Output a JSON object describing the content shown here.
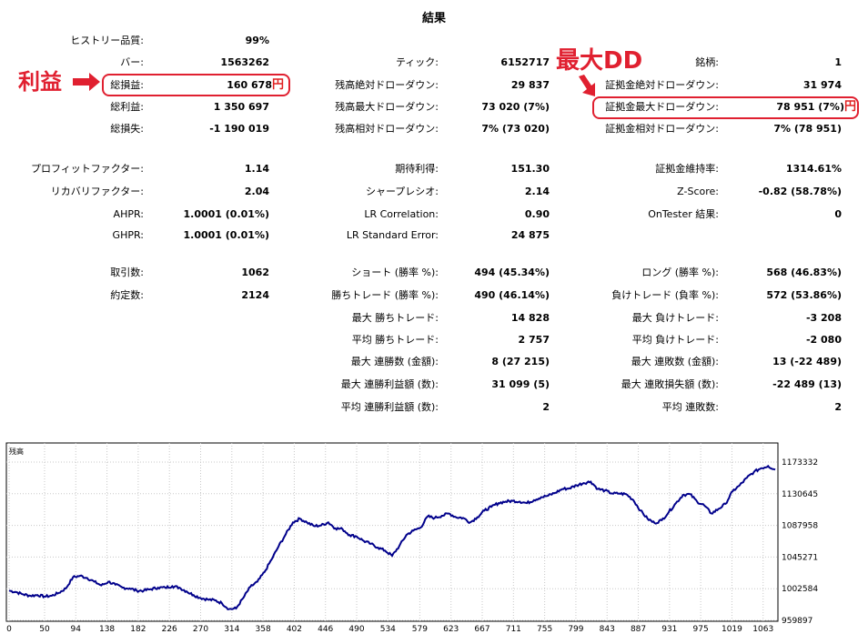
{
  "report": {
    "title": "結果",
    "col1": [
      {
        "label": "ヒストリー品質:",
        "value": "99%"
      },
      {
        "label": "バー:",
        "value": "1563262"
      },
      {
        "label": "総損益:",
        "value": "160 678",
        "suffix": "円"
      },
      {
        "label": "総利益:",
        "value": "1 350 697"
      },
      {
        "label": "総損失:",
        "value": "-1 190 019"
      },
      {
        "label": "プロフィットファクター:",
        "value": "1.14"
      },
      {
        "label": "リカバリファクター:",
        "value": "2.04"
      },
      {
        "label": "AHPR:",
        "value": "1.0001 (0.01%)"
      },
      {
        "label": "GHPR:",
        "value": "1.0001 (0.01%)"
      },
      {
        "label": "取引数:",
        "value": "1062"
      },
      {
        "label": "約定数:",
        "value": "2124"
      }
    ],
    "col2": [
      {
        "label": "ティック:",
        "value": "6152717"
      },
      {
        "label": "残高絶対ドローダウン:",
        "value": "29 837"
      },
      {
        "label": "残高最大ドローダウン:",
        "value": "73 020 (7%)"
      },
      {
        "label": "残高相対ドローダウン:",
        "value": "7% (73 020)"
      },
      {
        "label": "期待利得:",
        "value": "151.30"
      },
      {
        "label": "シャープレシオ:",
        "value": "2.14"
      },
      {
        "label": "LR Correlation:",
        "value": "0.90"
      },
      {
        "label": "LR Standard Error:",
        "value": "24 875"
      },
      {
        "label": "ショート (勝率 %):",
        "value": "494 (45.34%)"
      },
      {
        "label": "勝ちトレード (勝率 %):",
        "value": "490 (46.14%)"
      },
      {
        "label": "最大 勝ちトレード:",
        "value": "14 828"
      },
      {
        "label": "平均 勝ちトレード:",
        "value": "2 757"
      },
      {
        "label": "最大 連勝数 (金額):",
        "value": "8 (27 215)"
      },
      {
        "label": "最大 連勝利益額 (数):",
        "value": "31 099 (5)"
      },
      {
        "label": "平均 連勝利益額 (数):",
        "value": "2"
      }
    ],
    "col3": [
      {
        "label": "銘柄:",
        "value": "1"
      },
      {
        "label": "証拠金絶対ドローダウン:",
        "value": "31 974"
      },
      {
        "label": "証拠金最大ドローダウン:",
        "value": "78 951 (7%)",
        "suffix": "円"
      },
      {
        "label": "証拠金相対ドローダウン:",
        "value": "7% (78 951)"
      },
      {
        "label": "証拠金維持率:",
        "value": "1314.61%"
      },
      {
        "label": "Z-Score:",
        "value": "-0.82 (58.78%)"
      },
      {
        "label": "OnTester 結果:",
        "value": "0"
      },
      {
        "label": "ロング (勝率 %):",
        "value": "568 (46.83%)"
      },
      {
        "label": "負けトレード (負率 %):",
        "value": "572 (53.86%)"
      },
      {
        "label": "最大 負けトレード:",
        "value": "-3 208"
      },
      {
        "label": "平均 負けトレード:",
        "value": "-2 080"
      },
      {
        "label": "最大 連敗数 (金額):",
        "value": "13 (-22 489)"
      },
      {
        "label": "最大 連敗損失額 (数):",
        "value": "-22 489 (13)"
      },
      {
        "label": "平均 連敗数:",
        "value": "2"
      }
    ]
  },
  "annotations": {
    "profit_label": "利益",
    "maxdd_label": "最大DD",
    "color": "#e02030"
  },
  "chart_data": {
    "type": "line",
    "legend_label": "残高",
    "line_color": "#00008b",
    "x_ticks": [
      "0",
      "50",
      "94",
      "138",
      "182",
      "226",
      "270",
      "314",
      "358",
      "402",
      "446",
      "490",
      "534",
      "579",
      "623",
      "667",
      "711",
      "755",
      "799",
      "843",
      "887",
      "931",
      "975",
      "1019",
      "1063"
    ],
    "y_ticks": [
      "1173332",
      "1130645",
      "1087958",
      "1045271",
      "1002584",
      "959897"
    ],
    "xlim": [
      0,
      1080
    ],
    "ylim": [
      959897,
      1173332
    ],
    "grid": true,
    "series": [
      {
        "x": [
          0,
          10,
          20,
          30,
          40,
          50,
          60,
          70,
          80,
          90,
          100,
          110,
          120,
          130,
          140,
          150,
          160,
          170,
          180,
          190,
          200,
          210,
          220,
          230,
          240,
          250,
          260,
          270,
          280,
          290,
          300,
          310,
          320,
          330,
          340,
          350,
          360,
          370,
          380,
          390,
          400,
          410,
          420,
          430,
          440,
          450,
          460,
          470,
          480,
          490,
          500,
          510,
          520,
          530,
          540,
          550,
          560,
          570,
          580,
          590,
          600,
          610,
          620,
          630,
          640,
          650,
          660,
          670,
          680,
          690,
          700,
          710,
          720,
          730,
          740,
          750,
          760,
          770,
          780,
          790,
          800,
          810,
          820,
          830,
          840,
          850,
          860,
          870,
          880,
          890,
          900,
          910,
          920,
          930,
          940,
          950,
          960,
          970,
          980,
          990,
          1000,
          1010,
          1020,
          1030,
          1040,
          1050,
          1060,
          1070,
          1080
        ],
        "values": [
          1000000,
          998000,
          995000,
          993000,
          994000,
          992000,
          993000,
          997000,
          1003000,
          1018000,
          1020000,
          1017000,
          1012000,
          1007000,
          1012000,
          1008000,
          1004000,
          1003000,
          1000000,
          1000000,
          1002000,
          1004000,
          1004000,
          1006000,
          1004000,
          999000,
          994000,
          990000,
          988000,
          987000,
          983000,
          975000,
          976000,
          990000,
          1005000,
          1012000,
          1025000,
          1042000,
          1060000,
          1076000,
          1092000,
          1097000,
          1092000,
          1087000,
          1088000,
          1092000,
          1084000,
          1083000,
          1075000,
          1073000,
          1067000,
          1063000,
          1058000,
          1054000,
          1047000,
          1060000,
          1075000,
          1081000,
          1085000,
          1100000,
          1098000,
          1101000,
          1104000,
          1099000,
          1098000,
          1092000,
          1099000,
          1108000,
          1113000,
          1118000,
          1120000,
          1121000,
          1120000,
          1118000,
          1122000,
          1126000,
          1128000,
          1132000,
          1137000,
          1138000,
          1142000,
          1145000,
          1147000,
          1137000,
          1135000,
          1131000,
          1131000,
          1130000,
          1122000,
          1108000,
          1097000,
          1091000,
          1095000,
          1106000,
          1118000,
          1129000,
          1130000,
          1120000,
          1115000,
          1104000,
          1110000,
          1117000,
          1134000,
          1142000,
          1152000,
          1160000,
          1165000,
          1168000,
          1163000
        ]
      }
    ]
  }
}
